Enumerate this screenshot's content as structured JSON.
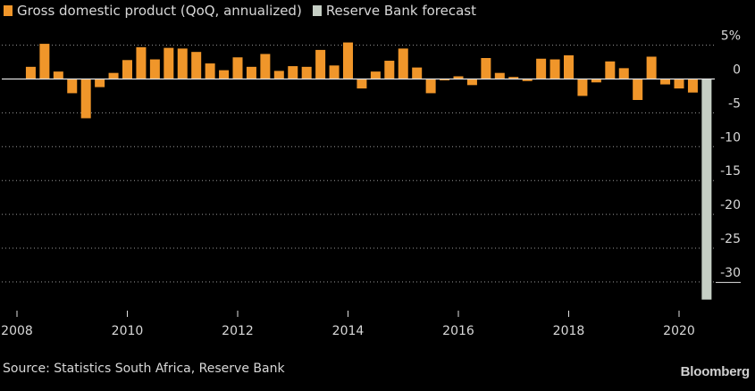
{
  "chart_data": {
    "type": "bar",
    "series": [
      {
        "name": "Gross domestic product (QoQ, annualized)",
        "color": "#f0962a",
        "x": [
          2008.25,
          2008.5,
          2008.75,
          2009.0,
          2009.25,
          2009.5,
          2009.75,
          2010.0,
          2010.25,
          2010.5,
          2010.75,
          2011.0,
          2011.25,
          2011.5,
          2011.75,
          2012.0,
          2012.25,
          2012.5,
          2012.75,
          2013.0,
          2013.25,
          2013.5,
          2013.75,
          2014.0,
          2014.25,
          2014.5,
          2014.75,
          2015.0,
          2015.25,
          2015.5,
          2015.75,
          2016.0,
          2016.25,
          2016.5,
          2016.75,
          2017.0,
          2017.25,
          2017.5,
          2017.75,
          2018.0,
          2018.25,
          2018.5,
          2018.75,
          2019.0,
          2019.25,
          2019.5,
          2019.75,
          2020.0,
          2020.25
        ],
        "values": [
          1.8,
          5.2,
          1.1,
          -2.1,
          -5.8,
          -1.2,
          0.9,
          2.8,
          4.7,
          2.9,
          4.6,
          4.5,
          4.0,
          2.3,
          1.3,
          3.2,
          1.8,
          3.7,
          1.2,
          1.9,
          1.8,
          4.3,
          2.0,
          5.4,
          -1.4,
          1.1,
          2.7,
          4.5,
          1.7,
          -2.1,
          -0.2,
          0.4,
          -0.9,
          3.1,
          0.9,
          0.3,
          -0.3,
          3.0,
          2.9,
          3.5,
          -2.5,
          -0.5,
          2.6,
          1.6,
          -3.1,
          3.3,
          -0.8,
          -1.4,
          -2.0
        ]
      },
      {
        "name": "Reserve Bank forecast",
        "color": "#c6cfc5",
        "x": [
          2020.5
        ],
        "values": [
          -32.6
        ]
      }
    ],
    "x_ticks": [
      "2008",
      "2010",
      "2012",
      "2014",
      "2016",
      "2018",
      "2020"
    ],
    "y_ticks": [
      "5%",
      "0",
      "-5",
      "-10",
      "-15",
      "-20",
      "-25",
      "-30"
    ],
    "ylim": [
      -32.6,
      6
    ],
    "grid": true
  },
  "source": "Source: Statistics South Africa, Reserve Bank",
  "brand": "Bloomberg",
  "colors": {
    "background": "#000000",
    "gridline": "#9a9a9a",
    "zero_line": "#e0e0e0",
    "text": "#d8d8d8"
  }
}
